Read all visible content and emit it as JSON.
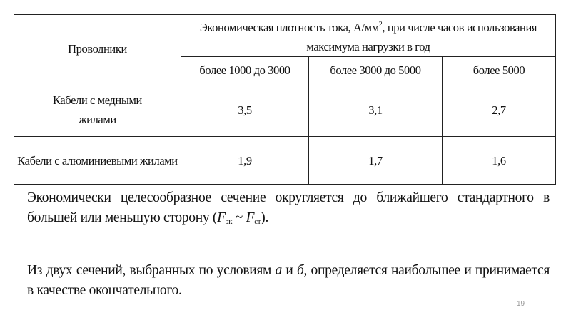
{
  "table": {
    "header": {
      "conductors": "Проводники",
      "density_pre": "Экономическая плотность тока, А/мм",
      "density_sup": "2",
      "density_post": ", при числе часов использования максимума нагрузки в год",
      "columns": [
        "более 1000 до 3000",
        "более 3000 до 5000",
        "более 5000"
      ]
    },
    "rows": [
      {
        "label": "Кабели с медными жилами",
        "values": [
          "3,5",
          "3,1",
          "2,7"
        ]
      },
      {
        "label": "Кабели с алюминиевыми жилами",
        "values": [
          "1,9",
          "1,7",
          "1,6"
        ]
      }
    ]
  },
  "paragraph1": {
    "text": "Экономически целесообразное сечение округляется до ближайшего стандартного в большей или меньшую сторону (",
    "f1": "F",
    "sub1": "эк",
    "tilde": " ~ ",
    "f2": "F",
    "sub2": "ст",
    "end": ")."
  },
  "paragraph2": {
    "pre": "Из двух сечений, выбранных по условиям ",
    "a": "а",
    "and": " и ",
    "b": "б",
    "post": ", определяется наибольшее и принимается в качестве окончательного."
  },
  "page_number": "19"
}
